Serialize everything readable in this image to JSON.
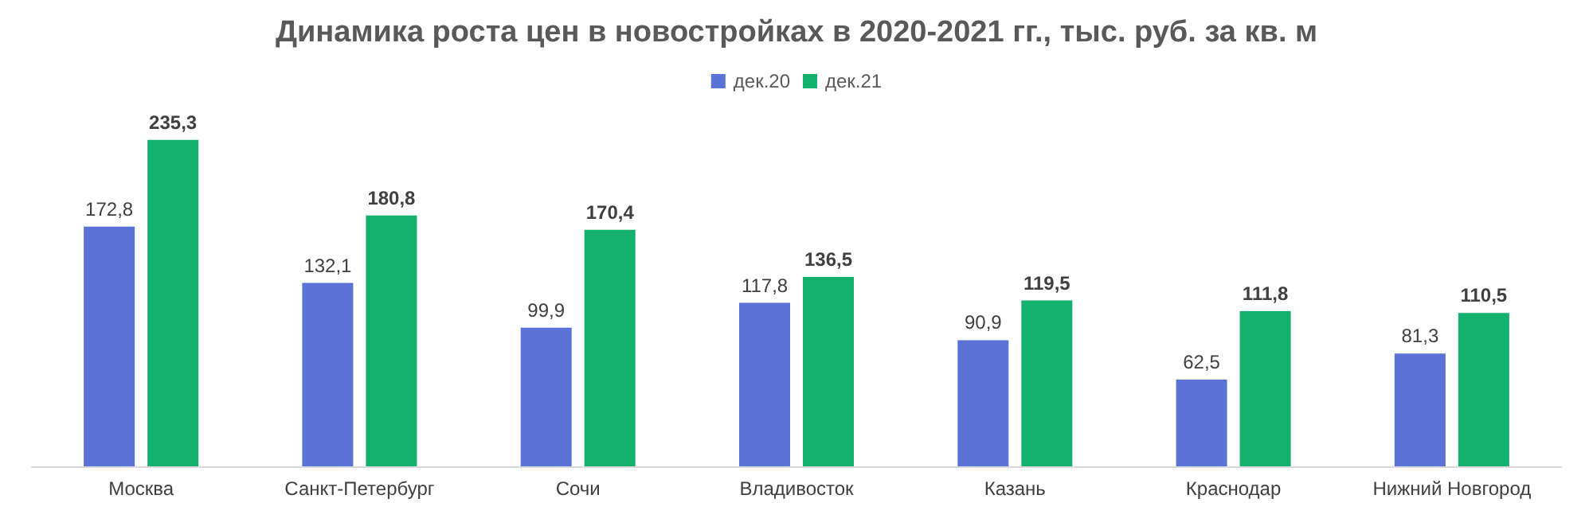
{
  "chart_data": {
    "type": "bar",
    "title": "Динамика роста цен в новостройках в 2020-2021 гг., тыс. руб. за кв. м",
    "categories": [
      "Москва",
      "Санкт-Петербург",
      "Сочи",
      "Владивосток",
      "Казань",
      "Краснодар",
      "Нижний Новгород"
    ],
    "series": [
      {
        "name": "дек.20",
        "color": "#5b73d6",
        "values": [
          172.8,
          132.1,
          99.9,
          117.8,
          90.9,
          62.5,
          81.3
        ],
        "value_labels": [
          "172,8",
          "132,1",
          "99,9",
          "117,8",
          "90,9",
          "62,5",
          "81,3"
        ]
      },
      {
        "name": "дек.21",
        "color": "#14b06e",
        "values": [
          235.3,
          180.8,
          170.4,
          136.5,
          119.5,
          111.8,
          110.5
        ],
        "value_labels": [
          "235,3",
          "180,8",
          "170,4",
          "136,5",
          "119,5",
          "111,8",
          "110,5"
        ]
      }
    ],
    "legend": "top"
  }
}
